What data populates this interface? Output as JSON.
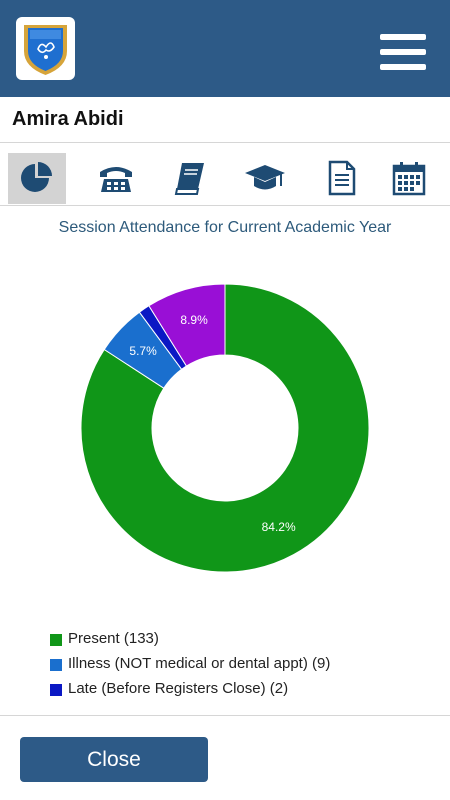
{
  "header": {
    "logo_icon": "school-shield-logo",
    "menu_icon": "hamburger-menu-icon"
  },
  "student": {
    "name": "Amira Abidi"
  },
  "tabs": [
    {
      "icon": "pie-chart-icon",
      "active": true
    },
    {
      "icon": "telephone-icon",
      "active": false
    },
    {
      "icon": "book-icon",
      "active": false
    },
    {
      "icon": "graduation-cap-icon",
      "active": false
    },
    {
      "icon": "document-icon",
      "active": false
    },
    {
      "icon": "calendar-icon",
      "active": false
    }
  ],
  "chart_data": {
    "type": "pie",
    "title": "Session Attendance for Current Academic Year",
    "slices": [
      {
        "label": "Present",
        "count": 133,
        "percent": 84.2,
        "percent_label": "84.2%",
        "color": "#109618"
      },
      {
        "label": "Illness (NOT medical or dental appt)",
        "count": 9,
        "percent": 5.7,
        "percent_label": "5.7%",
        "color": "#1a6fce"
      },
      {
        "label": "Late (Before Registers Close)",
        "count": 2,
        "percent": 1.3,
        "percent_label": "",
        "color": "#0b18c4"
      },
      {
        "label": "",
        "count": 14,
        "percent": 8.9,
        "percent_label": "8.9%",
        "color": "#990fd6"
      }
    ]
  },
  "legend": [
    {
      "text": "Present (133)",
      "color": "#109618"
    },
    {
      "text": "Illness (NOT medical or dental appt) (9)",
      "color": "#1a6fce"
    },
    {
      "text": "Late (Before Registers Close) (2)",
      "color": "#0b18c4"
    }
  ],
  "footer": {
    "close_label": "Close"
  }
}
